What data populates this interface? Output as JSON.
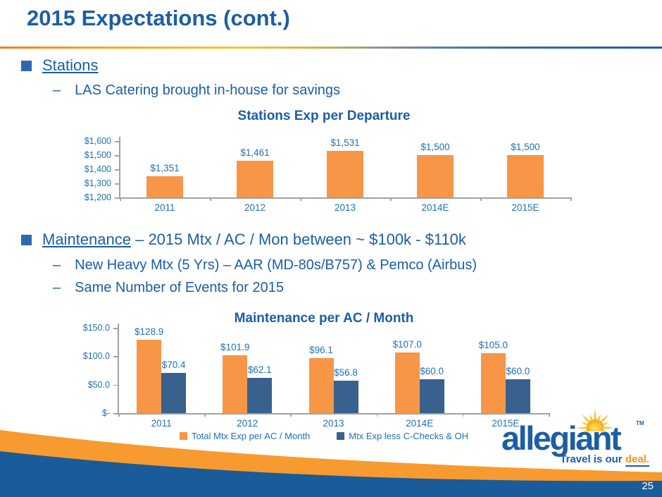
{
  "slide": {
    "title": "2015 Expectations (cont.)",
    "page_number": "25"
  },
  "bullets": {
    "dash": "–",
    "stations": {
      "label": "Stations",
      "sub": "LAS Catering brought in-house for savings"
    },
    "maintenance": {
      "label": "Maintenance",
      "rest": " – 2015 Mtx / AC / Mon between ~ $100k - $110k",
      "sub1": "New Heavy Mtx (5 Yrs) – AAR (MD-80s/B757) & Pemco (Airbus)",
      "sub2": "Same Number of Events for 2015"
    }
  },
  "chart_data": [
    {
      "type": "bar",
      "title": "Stations Exp per Departure",
      "categories": [
        "2011",
        "2012",
        "2013",
        "2014E",
        "2015E"
      ],
      "series": [
        {
          "color": "#F79646",
          "values": [
            1351,
            1461,
            1531,
            1500,
            1500
          ],
          "labels": [
            "$1,351",
            "$1,461",
            "$1,531",
            "$1,500",
            "$1,500"
          ]
        }
      ],
      "ylim": [
        1200,
        1600
      ],
      "yticks": [
        {
          "label": "$1,600",
          "value": 1600
        },
        {
          "label": "$1,500",
          "value": 1500
        },
        {
          "label": "$1,400",
          "value": 1400
        },
        {
          "label": "$1,300",
          "value": 1300
        },
        {
          "label": "$1,200",
          "value": 1200
        }
      ],
      "grid": false,
      "legend_visible": false
    },
    {
      "type": "bar",
      "title": "Maintenance per AC / Month",
      "categories": [
        "2011",
        "2012",
        "2013",
        "2014E",
        "2015E"
      ],
      "series": [
        {
          "name": "Total Mtx Exp per AC / Month",
          "color": "#F79646",
          "values": [
            128.9,
            101.9,
            96.1,
            107.0,
            105.0
          ],
          "labels": [
            "$128.9",
            "$101.9",
            "$96.1",
            "$107.0",
            "$105.0"
          ]
        },
        {
          "name": "Mtx Exp less C-Checks & OH",
          "color": "#38618E",
          "values": [
            70.4,
            62.1,
            56.8,
            60.0,
            60.0
          ],
          "labels": [
            "$70.4",
            "$62.1",
            "$56.8",
            "$60.0",
            "$60.0"
          ]
        }
      ],
      "ylim": [
        0,
        150
      ],
      "yticks": [
        {
          "label": "$150.0",
          "value": 150
        },
        {
          "label": "$100.0",
          "value": 100
        },
        {
          "label": "$50.0",
          "value": 50
        },
        {
          "label": "$-",
          "value": 0
        }
      ],
      "grid": false,
      "legend_visible": true,
      "legend_position": "bottom"
    }
  ],
  "logo": {
    "wordmark": "allegiant",
    "tm": "TM",
    "tagline_blue": "Travel is our ",
    "tagline_orange": "deal."
  },
  "colors": {
    "accent_orange": "#F79646",
    "bar_blue": "#38618E",
    "text_blue": "#1B5EA6",
    "chart_text_blue": "#2170B6",
    "swoosh_orange": "#F79B30",
    "swoosh_blue": "#1A5B99",
    "sun_orange": "#F7941E",
    "sun_yellow": "#FFCE34"
  }
}
